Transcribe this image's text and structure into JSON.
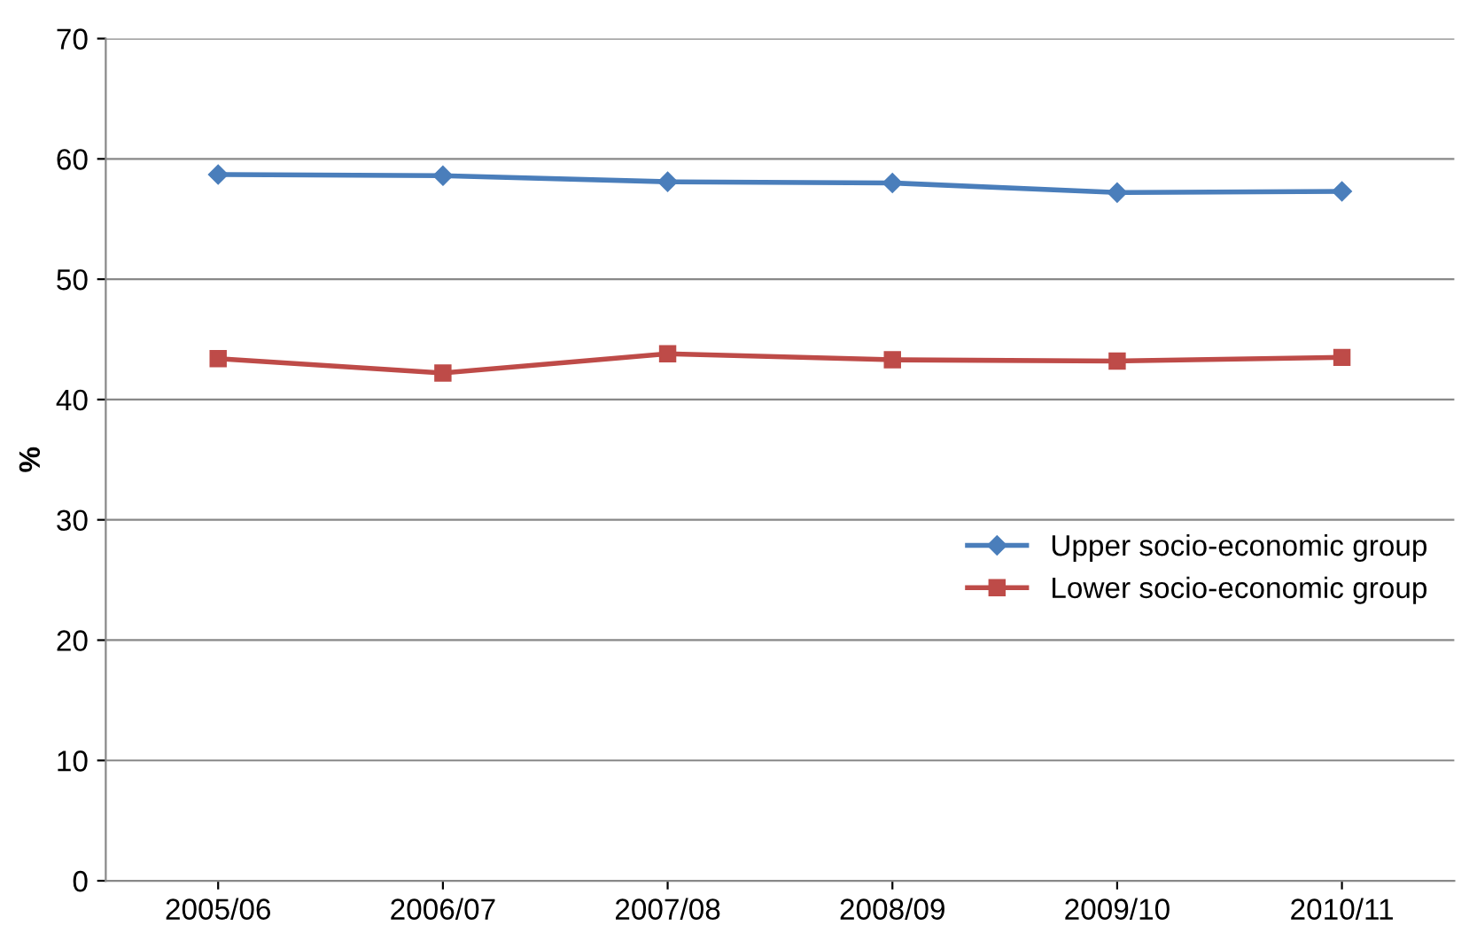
{
  "chart_data": {
    "type": "line",
    "ylabel": "%",
    "categories": [
      "2005/06",
      "2006/07",
      "2007/08",
      "2008/09",
      "2009/10",
      "2010/11"
    ],
    "series": [
      {
        "name": "Upper socio-economic group",
        "color": "#4a7ebb",
        "marker": "diamond",
        "values": [
          58.7,
          58.6,
          58.1,
          58.0,
          57.2,
          57.3
        ]
      },
      {
        "name": "Lower socio-economic group",
        "color": "#be4b48",
        "marker": "square",
        "values": [
          43.4,
          42.2,
          43.8,
          43.3,
          43.2,
          43.5
        ]
      }
    ],
    "ylim": [
      0,
      70
    ],
    "yticks": [
      0,
      10,
      20,
      30,
      40,
      50,
      60,
      70
    ],
    "grid": "y",
    "legend": "right",
    "line_style": "solid"
  }
}
